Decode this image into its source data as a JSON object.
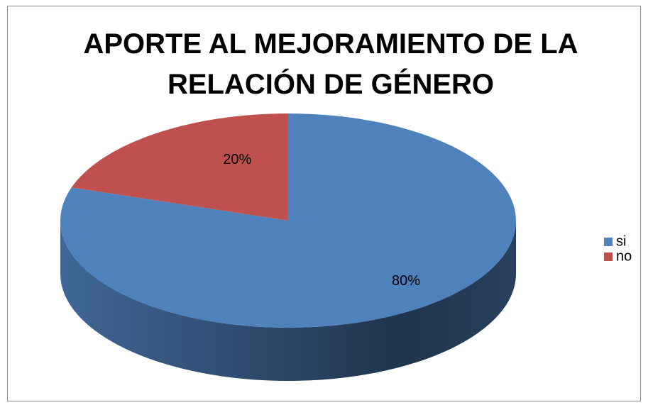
{
  "chart_data": {
    "type": "pie",
    "title": "APORTE AL MEJORAMIENTO DE LA RELACIÓN DE GÉNERO",
    "categories": [
      "si",
      "no"
    ],
    "values": [
      80,
      20
    ],
    "value_labels": [
      "80%",
      "20%"
    ],
    "colors": [
      "#4f81bd",
      "#c0504d"
    ],
    "legend": "right"
  }
}
